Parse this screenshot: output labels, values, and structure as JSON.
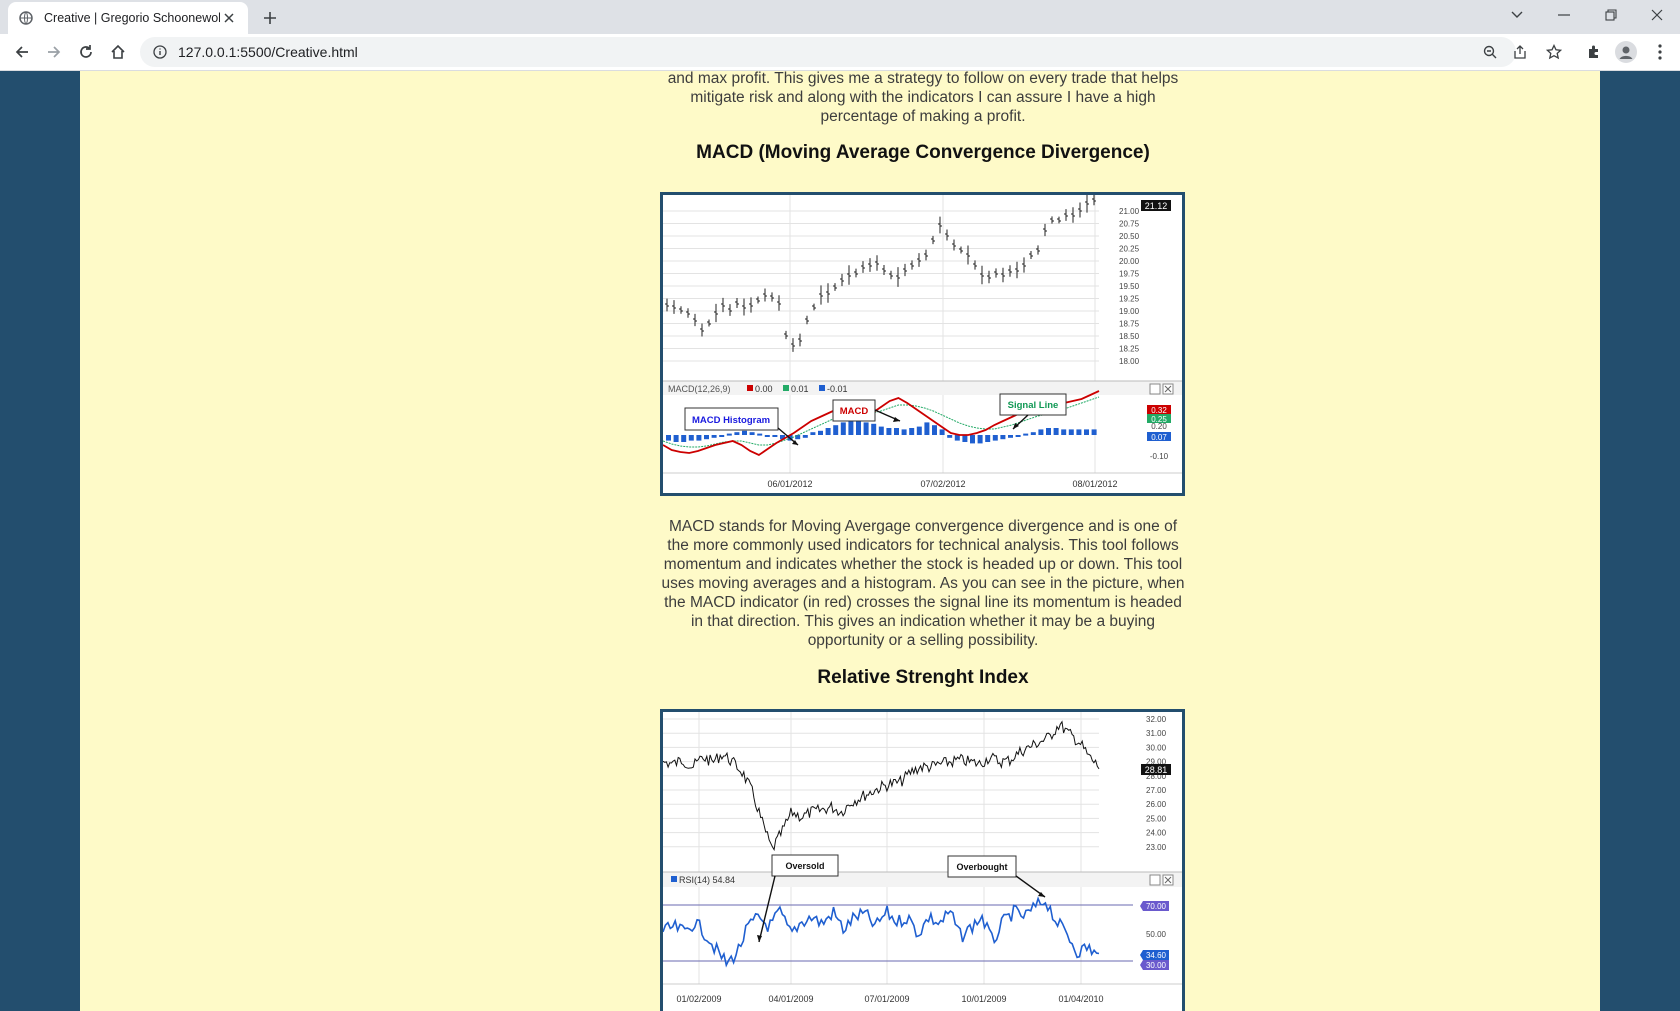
{
  "browser": {
    "tab_title": "Creative | Gregorio Schoonewolff",
    "url": "127.0.0.1:5500/Creative.html"
  },
  "page": {
    "intro_text": "and max profit. This gives me a strategy to follow on every trade that helps mitigate risk and along with the indicators I can assure I have a high percentage of making a profit.",
    "macd_heading": "MACD (Moving Average Convergence Divergence)",
    "macd_text": "MACD stands for Moving Avergage convergence divergence and is one of the more commonly used indicators for technical analysis. This tool follows momentum and indicates whether the stock is headed up or down. This tool uses moving averages and a histogram. As you can see in the picture, when the MACD indicator (in red) crosses the signal line its momentum is headed in that direction. This gives an indication whether it may be a buying opportunity or a selling possibility.",
    "rsi_heading": "Relative Strenght Index",
    "colors": {
      "background": "#234e6e",
      "content": "#fefac8",
      "macd_line": "#cc0000",
      "signal_line": "#22aa66",
      "histogram": "#1f5fd0",
      "rsi_line": "#1f5fd0"
    }
  },
  "macd_chart": {
    "price_ticks": [
      "21.00",
      "20.75",
      "20.50",
      "20.25",
      "20.00",
      "19.75",
      "19.50",
      "19.25",
      "19.00",
      "18.75",
      "18.50",
      "18.25",
      "18.00"
    ],
    "last_price": "21.12",
    "legend": {
      "name": "MACD(12,26,9)",
      "v1": "0.00",
      "v2": "0.01",
      "v3": "-0.01"
    },
    "callouts": {
      "histogram": "MACD Histogram",
      "macd": "MACD",
      "signal": "Signal Line"
    },
    "right_values": {
      "macd": "0.32",
      "signal": "0.25",
      "zero": "0.20",
      "hist": "0.07",
      "low": "-0.10"
    },
    "dates": [
      "06/01/2012",
      "07/02/2012",
      "08/01/2012"
    ]
  },
  "rsi_chart": {
    "price_ticks": [
      "32.00",
      "31.00",
      "30.00",
      "29.00",
      "28.00",
      "27.00",
      "26.00",
      "25.00",
      "24.00",
      "23.00"
    ],
    "last_price": "28.81",
    "legend": "RSI(14) 54.84",
    "callouts": {
      "oversold": "Oversold",
      "overbought": "Overbought"
    },
    "rsi_ticks": {
      "upper": "70.00",
      "mid": "50.00",
      "value": "34.60",
      "lower": "30.00"
    },
    "dates": [
      "01/02/2009",
      "04/01/2009",
      "07/01/2009",
      "10/01/2009",
      "01/04/2010"
    ]
  }
}
